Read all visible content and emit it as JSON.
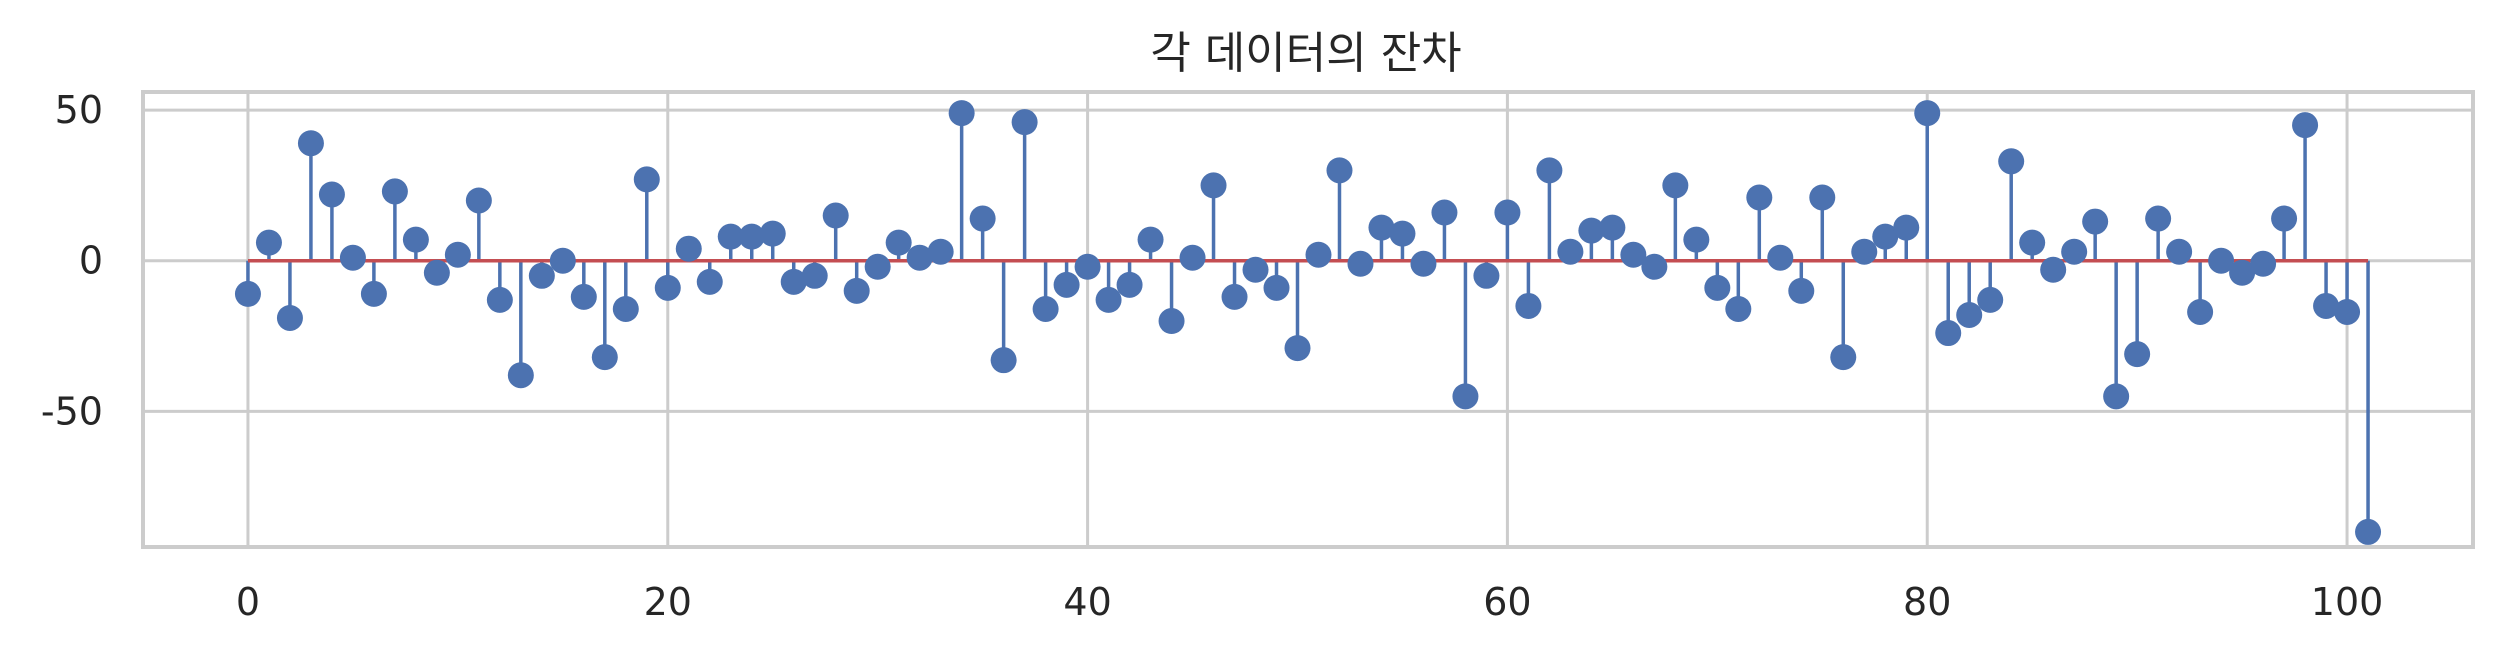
{
  "chart_data": {
    "type": "stem",
    "title": "각 데이터의 잔차",
    "xlabel": "",
    "ylabel": "",
    "xlim": [
      -5,
      106
    ],
    "ylim": [
      -95,
      56
    ],
    "x_ticks": [
      0,
      20,
      40,
      60,
      80,
      100
    ],
    "x_tick_labels": [
      "0",
      "20",
      "40",
      "60",
      "80",
      "100"
    ],
    "y_ticks": [
      50,
      0,
      -50
    ],
    "y_tick_labels": [
      "50",
      "0",
      "-50"
    ],
    "grid": true,
    "baseline": 0,
    "colors": {
      "marker": "#4c72b0",
      "stem": "#4c72b0",
      "baseline": "#c44e52"
    },
    "x": [
      0,
      1,
      2,
      3,
      4,
      5,
      6,
      7,
      8,
      9,
      10,
      11,
      12,
      13,
      14,
      15,
      16,
      17,
      18,
      19,
      20,
      21,
      22,
      23,
      24,
      25,
      26,
      27,
      28,
      29,
      30,
      31,
      32,
      33,
      34,
      35,
      36,
      37,
      38,
      39,
      40,
      41,
      42,
      43,
      44,
      45,
      46,
      47,
      48,
      49,
      50,
      51,
      52,
      53,
      54,
      55,
      56,
      57,
      58,
      59,
      60,
      61,
      62,
      63,
      64,
      65,
      66,
      67,
      68,
      69,
      70,
      71,
      72,
      73,
      74,
      75,
      76,
      77,
      78,
      79,
      80,
      81,
      82,
      83,
      84,
      85,
      86,
      87,
      88,
      89,
      90,
      91,
      92,
      93,
      94,
      95,
      96,
      97,
      98,
      99,
      100,
      101
    ],
    "values": [
      -11,
      6,
      -19,
      39,
      22,
      1,
      -11,
      23,
      7,
      -4,
      2,
      20,
      -13,
      -38,
      -5,
      0,
      -12,
      -32,
      -16,
      27,
      -9,
      4,
      -7,
      8,
      8,
      9,
      -7,
      -5,
      15,
      -10,
      -2,
      6,
      1,
      3,
      49,
      14,
      -33,
      46,
      -16,
      -8,
      -2,
      -13,
      -8,
      7,
      -20,
      1,
      25,
      -12,
      -3,
      -9,
      -29,
      2,
      30,
      -1,
      11,
      9,
      -1,
      16,
      -45,
      -5,
      16,
      -15,
      30,
      3,
      10,
      11,
      2,
      -2,
      25,
      7,
      -9,
      -16,
      21,
      1,
      -10,
      21,
      -32,
      3,
      8,
      11,
      49,
      -24,
      -18,
      -13,
      33,
      6,
      -3,
      3,
      13,
      -45,
      -31,
      14,
      3,
      -17,
      0,
      -4,
      -1,
      14,
      45,
      -15,
      -17,
      -90
    ]
  }
}
